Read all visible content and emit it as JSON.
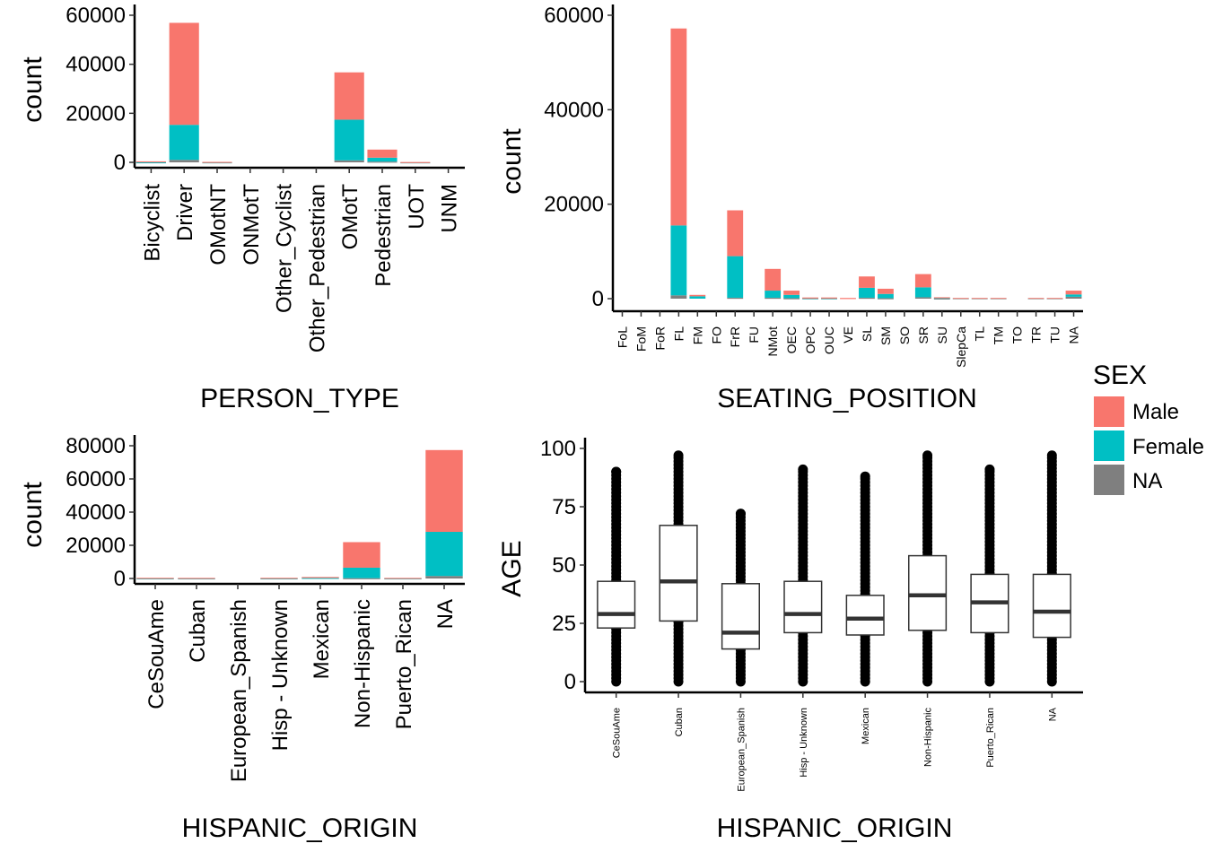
{
  "colors": {
    "Male": "#F8766D",
    "Female": "#00BFC4",
    "NA": "#7F7F7F"
  },
  "legend": {
    "title": "SEX",
    "items": [
      {
        "label": "Male",
        "color": "#F8766D"
      },
      {
        "label": "Female",
        "color": "#00BFC4"
      },
      {
        "label": "NA",
        "color": "#7F7F7F"
      }
    ]
  },
  "chart_data": [
    {
      "type": "bar",
      "stacked": true,
      "xlabel": "PERSON_TYPE",
      "ylabel": "count",
      "ylim": [
        0,
        60000
      ],
      "yticks": [
        "0",
        "20000",
        "40000",
        "60000"
      ],
      "categories": [
        "Bicyclist",
        "Driver",
        "OMotNT",
        "ONMotT",
        "Other_Cyclist",
        "Other_Pedestrian",
        "OMotT",
        "Pedestrian",
        "UOT",
        "UNM"
      ],
      "series": [
        {
          "name": "Male",
          "values": [
            350,
            41600,
            150,
            0,
            0,
            0,
            19300,
            3300,
            100,
            0
          ]
        },
        {
          "name": "Female",
          "values": [
            50,
            14300,
            30,
            0,
            0,
            0,
            16600,
            1600,
            20,
            0
          ]
        },
        {
          "name": "NA",
          "values": [
            0,
            1000,
            0,
            0,
            0,
            0,
            800,
            300,
            0,
            0
          ]
        }
      ]
    },
    {
      "type": "bar",
      "stacked": true,
      "xlabel": "SEATING_POSITION",
      "ylabel": "count",
      "ylim": [
        0,
        60000
      ],
      "yticks": [
        "0",
        "20000",
        "40000",
        "60000"
      ],
      "categories": [
        "FoL",
        "FoM",
        "FoR",
        "FL",
        "FM",
        "FO",
        "FrR",
        "FU",
        "NMot",
        "OEC",
        "OPC",
        "OUC",
        "VE",
        "SL",
        "SM",
        "SO",
        "SR",
        "SU",
        "SlepCa",
        "TL",
        "TM",
        "TO",
        "TR",
        "TU",
        "NA"
      ],
      "series": [
        {
          "name": "Male",
          "values": [
            0,
            0,
            0,
            41700,
            300,
            0,
            9700,
            0,
            4600,
            900,
            100,
            100,
            150,
            2400,
            1100,
            0,
            2800,
            100,
            50,
            50,
            50,
            0,
            50,
            50,
            800
          ]
        },
        {
          "name": "Female",
          "values": [
            0,
            0,
            0,
            14800,
            500,
            0,
            8800,
            0,
            1500,
            700,
            50,
            50,
            0,
            2100,
            900,
            0,
            2100,
            150,
            100,
            100,
            100,
            0,
            100,
            100,
            500
          ]
        },
        {
          "name": "NA",
          "values": [
            0,
            0,
            0,
            700,
            0,
            0,
            200,
            0,
            200,
            100,
            100,
            100,
            0,
            200,
            100,
            0,
            300,
            50,
            0,
            0,
            0,
            0,
            0,
            0,
            400
          ]
        }
      ]
    },
    {
      "type": "bar",
      "stacked": true,
      "xlabel": "HISPANIC_ORIGIN",
      "ylabel": "count",
      "ylim": [
        0,
        80000
      ],
      "yticks": [
        "0",
        "20000",
        "40000",
        "60000",
        "80000"
      ],
      "categories": [
        "CeSouAme",
        "Cuban",
        "European_Spanish",
        "Hisp - Unknown",
        "Mexican",
        "Non-Hispanic",
        "Puerto_Rican",
        "NA"
      ],
      "series": [
        {
          "name": "Male",
          "values": [
            300,
            250,
            0,
            300,
            500,
            15400,
            250,
            49300
          ]
        },
        {
          "name": "Female",
          "values": [
            100,
            100,
            0,
            100,
            400,
            6300,
            100,
            26600
          ]
        },
        {
          "name": "NA",
          "values": [
            0,
            0,
            0,
            0,
            0,
            200,
            0,
            1500
          ]
        }
      ]
    },
    {
      "type": "box",
      "xlabel": "HISPANIC_ORIGIN",
      "ylabel": "AGE",
      "ylim": [
        0,
        100
      ],
      "yticks": [
        "0",
        "25",
        "50",
        "75",
        "100"
      ],
      "categories": [
        "CeSouAme",
        "Cuban",
        "European_Spanish",
        "Hisp - Unknown",
        "Mexican",
        "Non-Hispanic",
        "Puerto_Rican",
        "NA"
      ],
      "boxes": [
        {
          "q1": 23,
          "median": 29,
          "q3": 43,
          "whisker_low": 23,
          "whisker_high": 43,
          "outlier_min": 0,
          "outlier_max": 90
        },
        {
          "q1": 26,
          "median": 43,
          "q3": 67,
          "whisker_low": 26,
          "whisker_high": 67,
          "outlier_min": 0,
          "outlier_max": 97
        },
        {
          "q1": 14,
          "median": 21,
          "q3": 42,
          "whisker_low": 14,
          "whisker_high": 42,
          "outlier_min": 0,
          "outlier_max": 72
        },
        {
          "q1": 21,
          "median": 29,
          "q3": 43,
          "whisker_low": 21,
          "whisker_high": 43,
          "outlier_min": 0,
          "outlier_max": 91
        },
        {
          "q1": 20,
          "median": 27,
          "q3": 37,
          "whisker_low": 20,
          "whisker_high": 37,
          "outlier_min": 0,
          "outlier_max": 88
        },
        {
          "q1": 22,
          "median": 37,
          "q3": 54,
          "whisker_low": 22,
          "whisker_high": 54,
          "outlier_min": 0,
          "outlier_max": 97
        },
        {
          "q1": 21,
          "median": 34,
          "q3": 46,
          "whisker_low": 21,
          "whisker_high": 46,
          "outlier_min": 0,
          "outlier_max": 91
        },
        {
          "q1": 19,
          "median": 30,
          "q3": 46,
          "whisker_low": 19,
          "whisker_high": 46,
          "outlier_min": 0,
          "outlier_max": 97
        }
      ]
    }
  ]
}
